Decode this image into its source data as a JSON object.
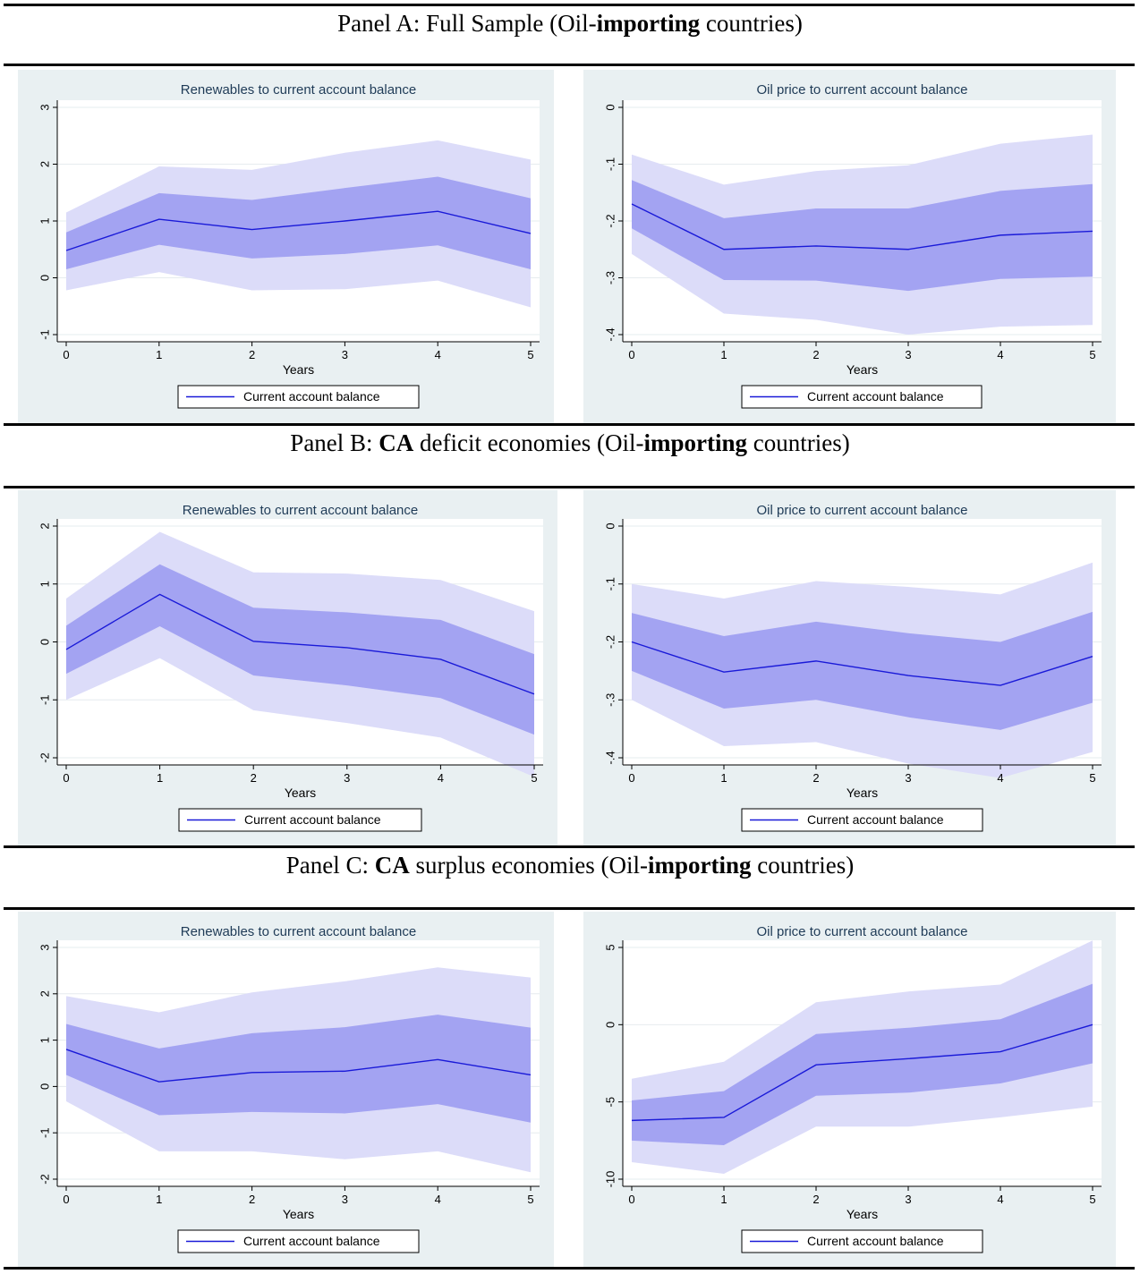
{
  "panels": [
    {
      "prefix": "Panel A: Full Sample (Oil-",
      "bold1": "",
      "middle": "",
      "bold2": "importing",
      "suffix": " countries)"
    },
    {
      "prefix": "Panel B: ",
      "bold1": "CA",
      "middle": " deficit economies (Oil-",
      "bold2": "importing",
      "suffix": " countries)"
    },
    {
      "prefix": "Panel C: ",
      "bold1": "CA",
      "middle": " surplus economies (Oil-",
      "bold2": "importing",
      "suffix": " countries)"
    }
  ],
  "colors": {
    "line": "#1a1ad8",
    "inner_band": "#a3a3f2",
    "outer_band": "#dcdcf9",
    "background": "#e9f0f2"
  },
  "chart_data": [
    {
      "type": "line",
      "panel": "A",
      "title": "Renewables to current account balance",
      "xlabel": "Years",
      "ylabel": "",
      "x": [
        0,
        1,
        2,
        3,
        4,
        5
      ],
      "ylim": [
        -1,
        3
      ],
      "yticks": [
        -1,
        0,
        1,
        2,
        3
      ],
      "yticklabels": [
        "-1",
        "0",
        "1",
        "2",
        "3"
      ],
      "series": [
        {
          "name": "Current account balance",
          "values": [
            0.48,
            1.03,
            0.85,
            1.0,
            1.17,
            0.78
          ]
        }
      ],
      "inner_band": {
        "lower": [
          0.15,
          0.58,
          0.34,
          0.42,
          0.57,
          0.15
        ],
        "upper": [
          0.8,
          1.49,
          1.37,
          1.58,
          1.78,
          1.4
        ]
      },
      "outer_band": {
        "lower": [
          -0.22,
          0.1,
          -0.22,
          -0.2,
          -0.05,
          -0.52
        ],
        "upper": [
          1.15,
          1.96,
          1.9,
          2.2,
          2.42,
          2.08
        ]
      },
      "legend": "Current account balance"
    },
    {
      "type": "line",
      "panel": "A",
      "title": "Oil price to current account balance",
      "xlabel": "Years",
      "ylabel": "",
      "x": [
        0,
        1,
        2,
        3,
        4,
        5
      ],
      "ylim": [
        -0.4,
        0
      ],
      "yticks": [
        -0.4,
        -0.3,
        -0.2,
        -0.1,
        0
      ],
      "yticklabels": [
        "-.4",
        "-.3",
        "-.2",
        "-.1",
        "0"
      ],
      "series": [
        {
          "name": "Current account balance",
          "values": [
            -0.17,
            -0.25,
            -0.244,
            -0.25,
            -0.225,
            -0.218
          ]
        }
      ],
      "inner_band": {
        "lower": [
          -0.213,
          -0.304,
          -0.305,
          -0.323,
          -0.302,
          -0.298
        ],
        "upper": [
          -0.128,
          -0.195,
          -0.178,
          -0.178,
          -0.147,
          -0.135
        ]
      },
      "outer_band": {
        "lower": [
          -0.258,
          -0.363,
          -0.374,
          -0.4,
          -0.386,
          -0.383
        ],
        "upper": [
          -0.083,
          -0.136,
          -0.112,
          -0.102,
          -0.064,
          -0.048
        ]
      },
      "legend": "Current account balance"
    },
    {
      "type": "line",
      "panel": "B",
      "title": "Renewables to current account balance",
      "xlabel": "Years",
      "ylabel": "",
      "x": [
        0,
        1,
        2,
        3,
        4,
        5
      ],
      "ylim": [
        -2,
        2
      ],
      "yticks": [
        -2,
        -1,
        0,
        1,
        2
      ],
      "yticklabels": [
        "-2",
        "-1",
        "0",
        "1",
        "2"
      ],
      "series": [
        {
          "name": "Current account balance",
          "values": [
            -0.13,
            0.82,
            0.01,
            -0.1,
            -0.3,
            -0.9
          ]
        }
      ],
      "inner_band": {
        "lower": [
          -0.55,
          0.27,
          -0.58,
          -0.75,
          -0.97,
          -1.6
        ],
        "upper": [
          0.28,
          1.34,
          0.59,
          0.51,
          0.38,
          -0.21
        ]
      },
      "outer_band": {
        "lower": [
          -1.0,
          -0.28,
          -1.18,
          -1.4,
          -1.65,
          -2.33
        ],
        "upper": [
          0.75,
          1.9,
          1.2,
          1.18,
          1.07,
          0.53
        ]
      },
      "legend": "Current account balance"
    },
    {
      "type": "line",
      "panel": "B",
      "title": "Oil price to current account balance",
      "xlabel": "Years",
      "ylabel": "",
      "x": [
        0,
        1,
        2,
        3,
        4,
        5
      ],
      "ylim": [
        -0.4,
        0
      ],
      "yticks": [
        -0.4,
        -0.3,
        -0.2,
        -0.1,
        0
      ],
      "yticklabels": [
        "-.4",
        "-.3",
        "-.2",
        "-.1",
        "0"
      ],
      "series": [
        {
          "name": "Current account balance",
          "values": [
            -0.2,
            -0.252,
            -0.233,
            -0.258,
            -0.275,
            -0.225
          ]
        }
      ],
      "inner_band": {
        "lower": [
          -0.25,
          -0.315,
          -0.3,
          -0.33,
          -0.352,
          -0.305
        ],
        "upper": [
          -0.15,
          -0.19,
          -0.165,
          -0.185,
          -0.2,
          -0.148
        ]
      },
      "outer_band": {
        "lower": [
          -0.3,
          -0.38,
          -0.373,
          -0.41,
          -0.435,
          -0.39
        ],
        "upper": [
          -0.1,
          -0.125,
          -0.095,
          -0.105,
          -0.118,
          -0.063
        ]
      },
      "legend": "Current account balance"
    },
    {
      "type": "line",
      "panel": "C",
      "title": "Renewables to current account balance",
      "xlabel": "Years",
      "ylabel": "",
      "x": [
        0,
        1,
        2,
        3,
        4,
        5
      ],
      "ylim": [
        -2,
        3
      ],
      "yticks": [
        -2,
        -1,
        0,
        1,
        2,
        3
      ],
      "yticklabels": [
        "-2",
        "-1",
        "0",
        "1",
        "2",
        "3"
      ],
      "series": [
        {
          "name": "Current account balance",
          "values": [
            0.8,
            0.1,
            0.3,
            0.33,
            0.58,
            0.25
          ]
        }
      ],
      "inner_band": {
        "lower": [
          0.25,
          -0.62,
          -0.55,
          -0.58,
          -0.38,
          -0.78
        ],
        "upper": [
          1.35,
          0.82,
          1.15,
          1.28,
          1.55,
          1.27
        ]
      },
      "outer_band": {
        "lower": [
          -0.32,
          -1.4,
          -1.4,
          -1.57,
          -1.4,
          -1.85
        ],
        "upper": [
          1.95,
          1.6,
          2.03,
          2.27,
          2.57,
          2.35
        ]
      },
      "legend": "Current account balance"
    },
    {
      "type": "line",
      "panel": "C",
      "title": "Oil price to current account balance",
      "xlabel": "Years",
      "ylabel": "",
      "x": [
        0,
        1,
        2,
        3,
        4,
        5
      ],
      "ylim": [
        -10,
        5
      ],
      "yticks": [
        -10,
        -5,
        0,
        5
      ],
      "yticklabels": [
        "-10",
        "-5",
        "0",
        "5"
      ],
      "series": [
        {
          "name": "Current account balance",
          "values": [
            -6.2,
            -6.0,
            -2.6,
            -2.2,
            -1.75,
            0.0
          ]
        }
      ],
      "inner_band": {
        "lower": [
          -7.5,
          -7.8,
          -4.6,
          -4.4,
          -3.8,
          -2.5
        ],
        "upper": [
          -4.9,
          -4.3,
          -0.6,
          -0.2,
          0.35,
          2.65
        ]
      },
      "outer_band": {
        "lower": [
          -8.9,
          -9.65,
          -6.6,
          -6.6,
          -6.0,
          -5.3
        ],
        "upper": [
          -3.5,
          -2.4,
          1.45,
          2.15,
          2.6,
          5.45
        ]
      },
      "legend": "Current account balance"
    }
  ]
}
